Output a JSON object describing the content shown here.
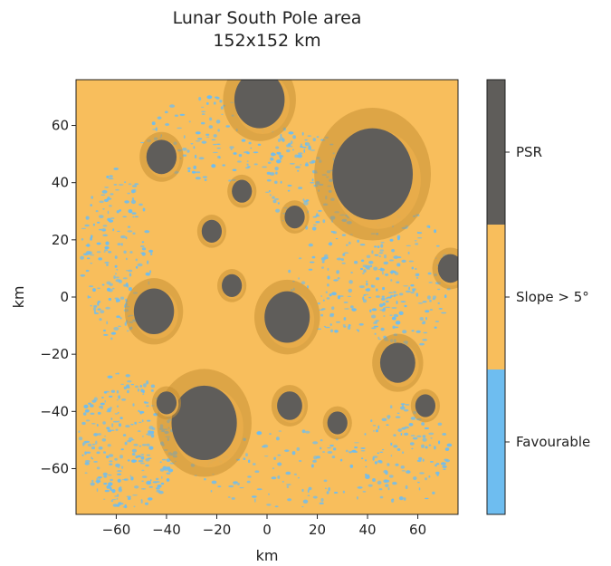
{
  "chart_data": {
    "type": "heatmap",
    "title": "Lunar South Pole area",
    "subtitle": "152x152 km",
    "xlabel": "km",
    "ylabel": "km",
    "xlim": [
      -76,
      76
    ],
    "ylim": [
      -76,
      76
    ],
    "xticks": [
      -60,
      -40,
      -20,
      0,
      20,
      40,
      60
    ],
    "yticks": [
      -60,
      -40,
      -20,
      0,
      20,
      40,
      60
    ],
    "xtick_labels": [
      "−60",
      "−40",
      "−20",
      "0",
      "20",
      "40",
      "60"
    ],
    "ytick_labels": [
      "−60",
      "−40",
      "−20",
      "0",
      "20",
      "40",
      "60"
    ],
    "grid": false,
    "colorbar": {
      "position": "right",
      "categories": [
        {
          "label": "Favourable",
          "color": "#6ebdf0"
        },
        {
          "label": "Slope > 5°",
          "color": "#f8be5c"
        },
        {
          "label": "PSR",
          "color": "#5f5d5a"
        }
      ]
    },
    "colors": {
      "favourable": "#6ebdf0",
      "slope": "#f8be5c",
      "slope_shade": "#c68f35",
      "psr": "#5f5d5a"
    },
    "psr_craters": [
      {
        "x": -45,
        "y": -5,
        "r": 8
      },
      {
        "x": 8,
        "y": -7,
        "r": 9
      },
      {
        "x": 42,
        "y": 43,
        "r": 16
      },
      {
        "x": -25,
        "y": -44,
        "r": 13
      },
      {
        "x": -3,
        "y": 69,
        "r": 10
      },
      {
        "x": 52,
        "y": -23,
        "r": 7
      },
      {
        "x": -42,
        "y": 49,
        "r": 6
      },
      {
        "x": 9,
        "y": -38,
        "r": 5
      },
      {
        "x": -10,
        "y": 37,
        "r": 4
      },
      {
        "x": 11,
        "y": 28,
        "r": 4
      },
      {
        "x": -22,
        "y": 23,
        "r": 4
      },
      {
        "x": -40,
        "y": -37,
        "r": 4
      },
      {
        "x": 63,
        "y": -38,
        "r": 4
      },
      {
        "x": 28,
        "y": -44,
        "r": 4
      },
      {
        "x": 73,
        "y": 10,
        "r": 5
      },
      {
        "x": -14,
        "y": 4,
        "r": 4
      }
    ]
  }
}
